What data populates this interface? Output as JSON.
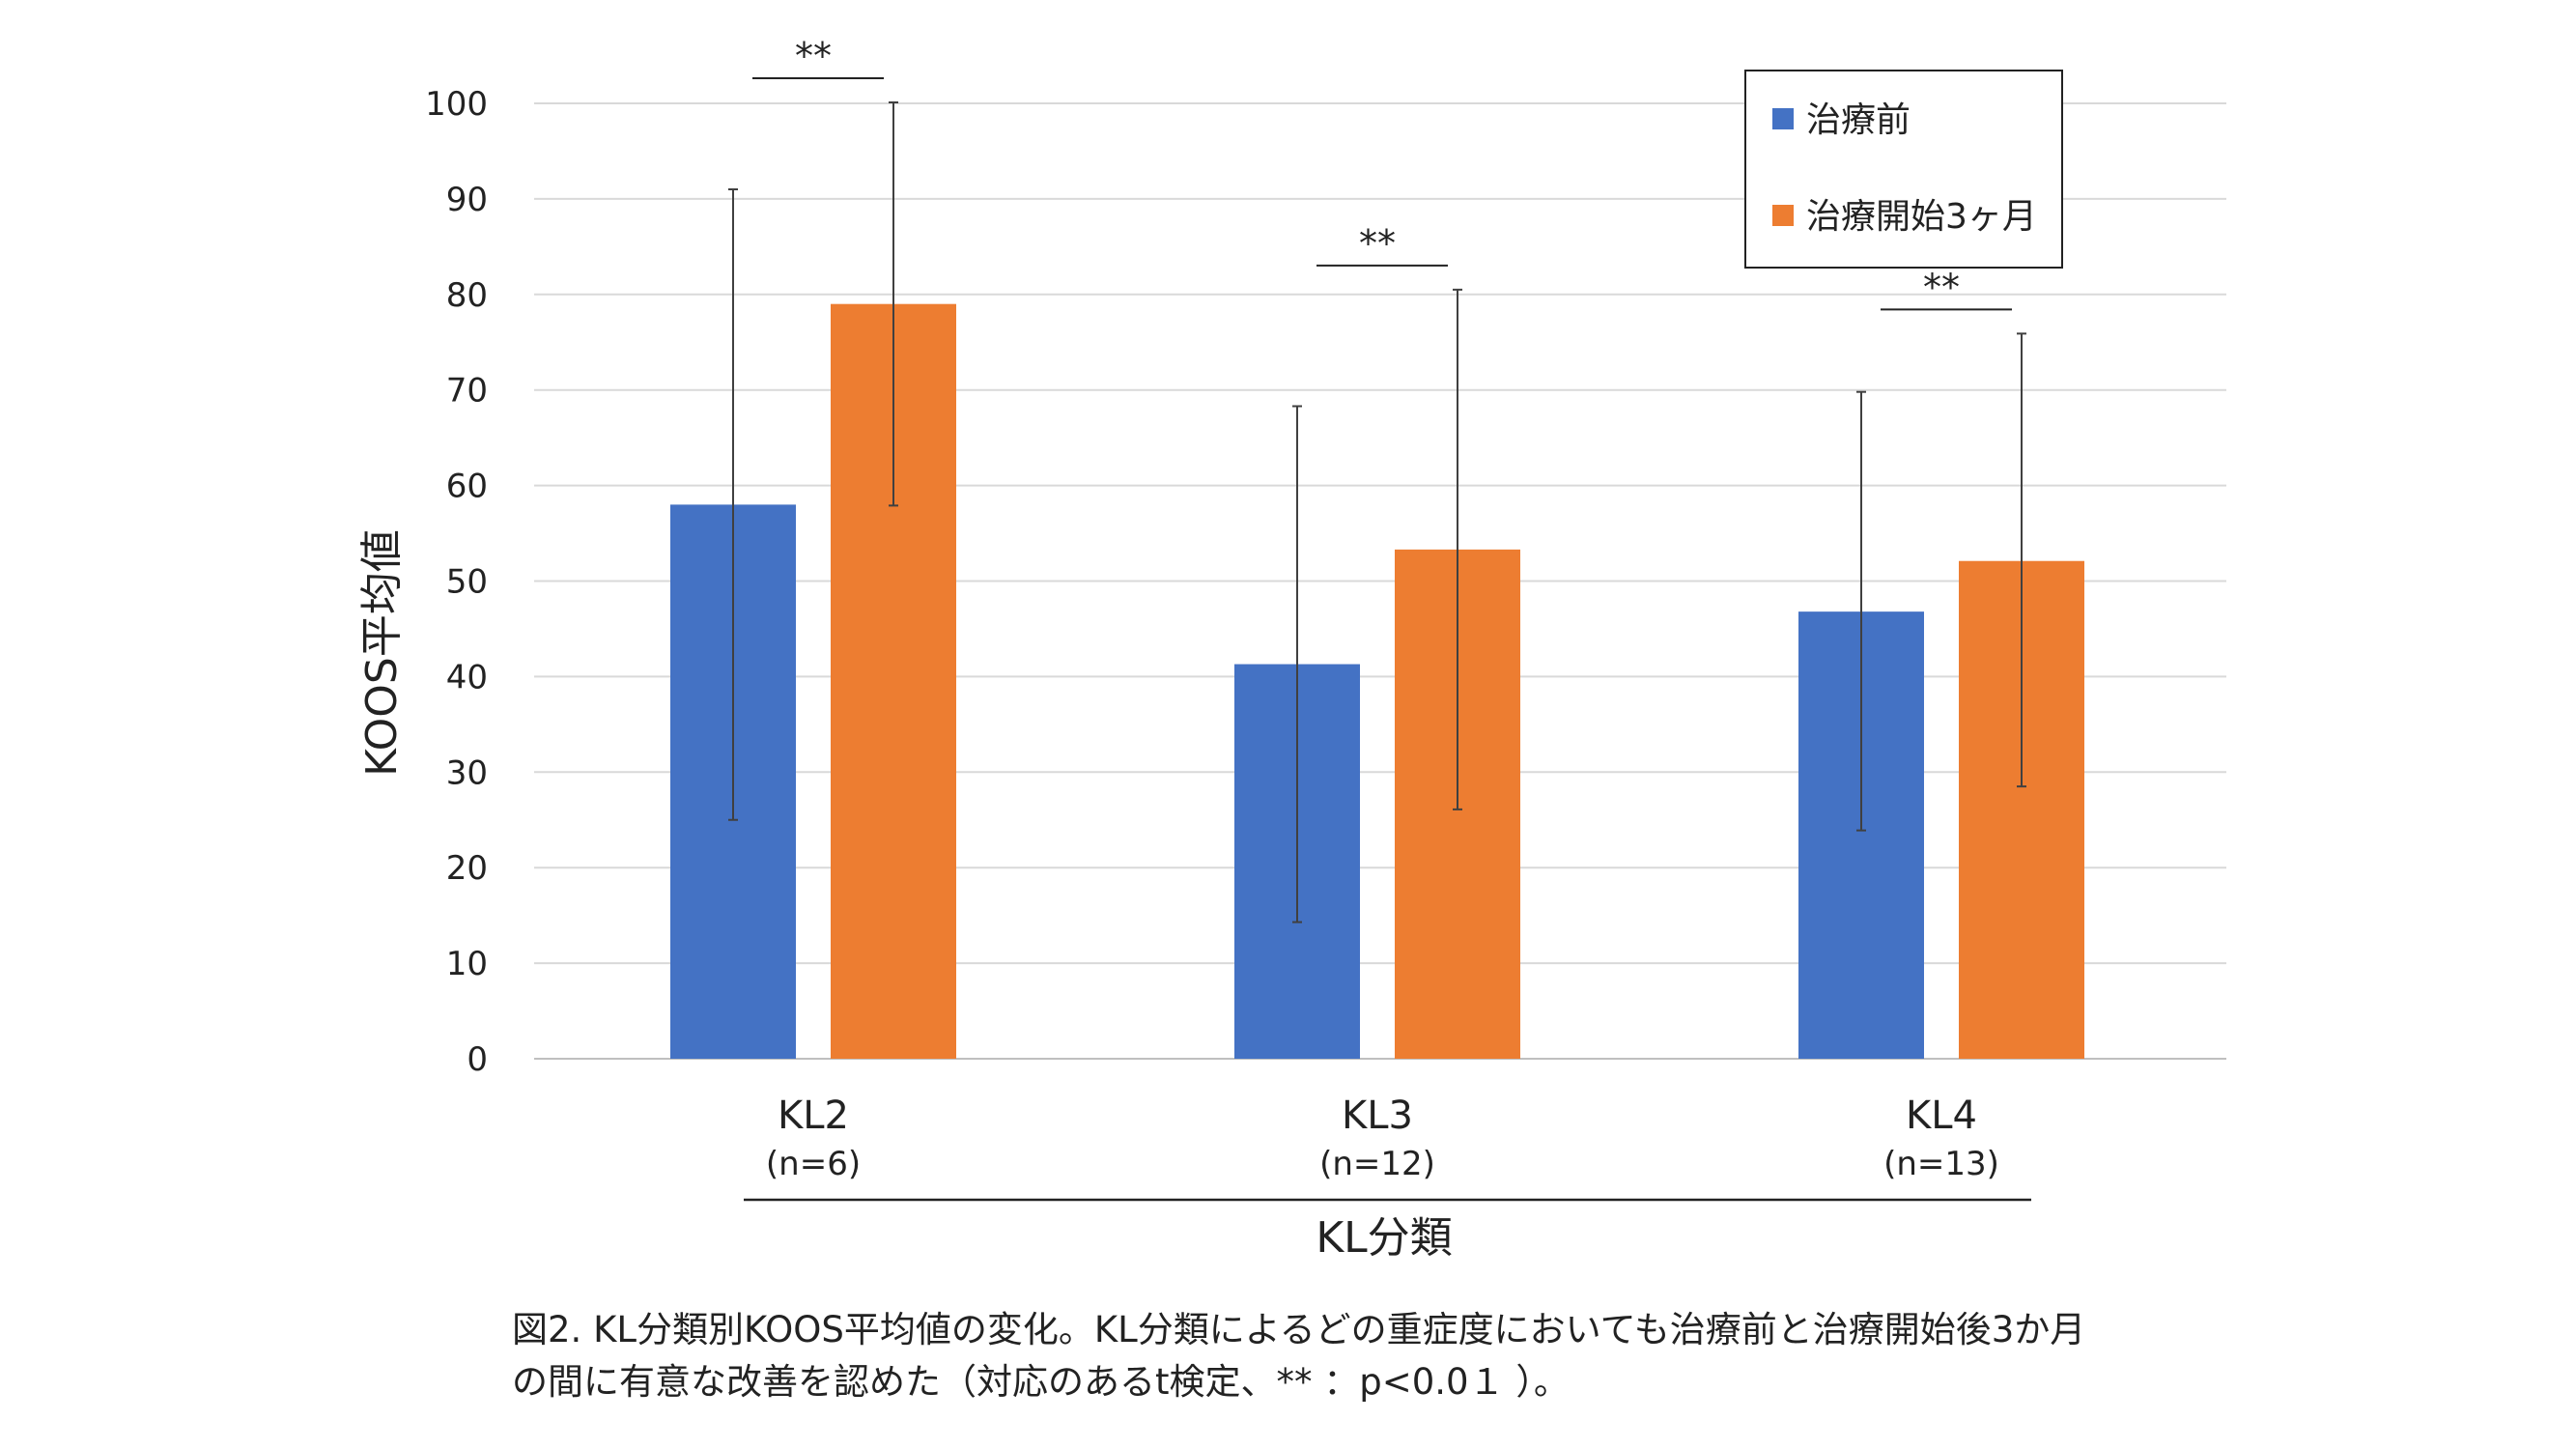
{
  "chart_data": {
    "type": "bar",
    "categories": [
      "KL2",
      "KL3",
      "KL4"
    ],
    "category_sublabels": [
      "(n=6)",
      "(n=12)",
      "(n=13)"
    ],
    "series": [
      {
        "name": "治療前",
        "values": [
          58,
          41.3,
          46.8
        ],
        "error_low": [
          25,
          14.3,
          23.9
        ],
        "error_high": [
          91,
          68.3,
          69.8
        ]
      },
      {
        "name": "治療開始3ヶ月",
        "values": [
          79,
          53.3,
          52.1
        ],
        "error_low": [
          57.9,
          26.1,
          28.5
        ],
        "error_high": [
          100.1,
          80.5,
          75.9
        ]
      }
    ],
    "colors": [
      "#4472C4",
      "#ED7D31"
    ],
    "xlabel": "KL分類",
    "ylabel": "KOOS平均値",
    "ylim": [
      0,
      100
    ],
    "yticks": [
      0,
      10,
      20,
      30,
      40,
      50,
      60,
      70,
      80,
      90,
      100
    ],
    "significance": [
      "**",
      "**",
      "**"
    ],
    "legend_position": "top-right",
    "grid": true
  },
  "caption": {
    "line1": "図2. KL分類別KOOS平均値の変化。KL分類によるどの重症度においても治療前と治療開始後3か月",
    "line2": "の間に有意な改善を認めた（対応のあるt検定、** ：p<0.0１ ）。"
  }
}
